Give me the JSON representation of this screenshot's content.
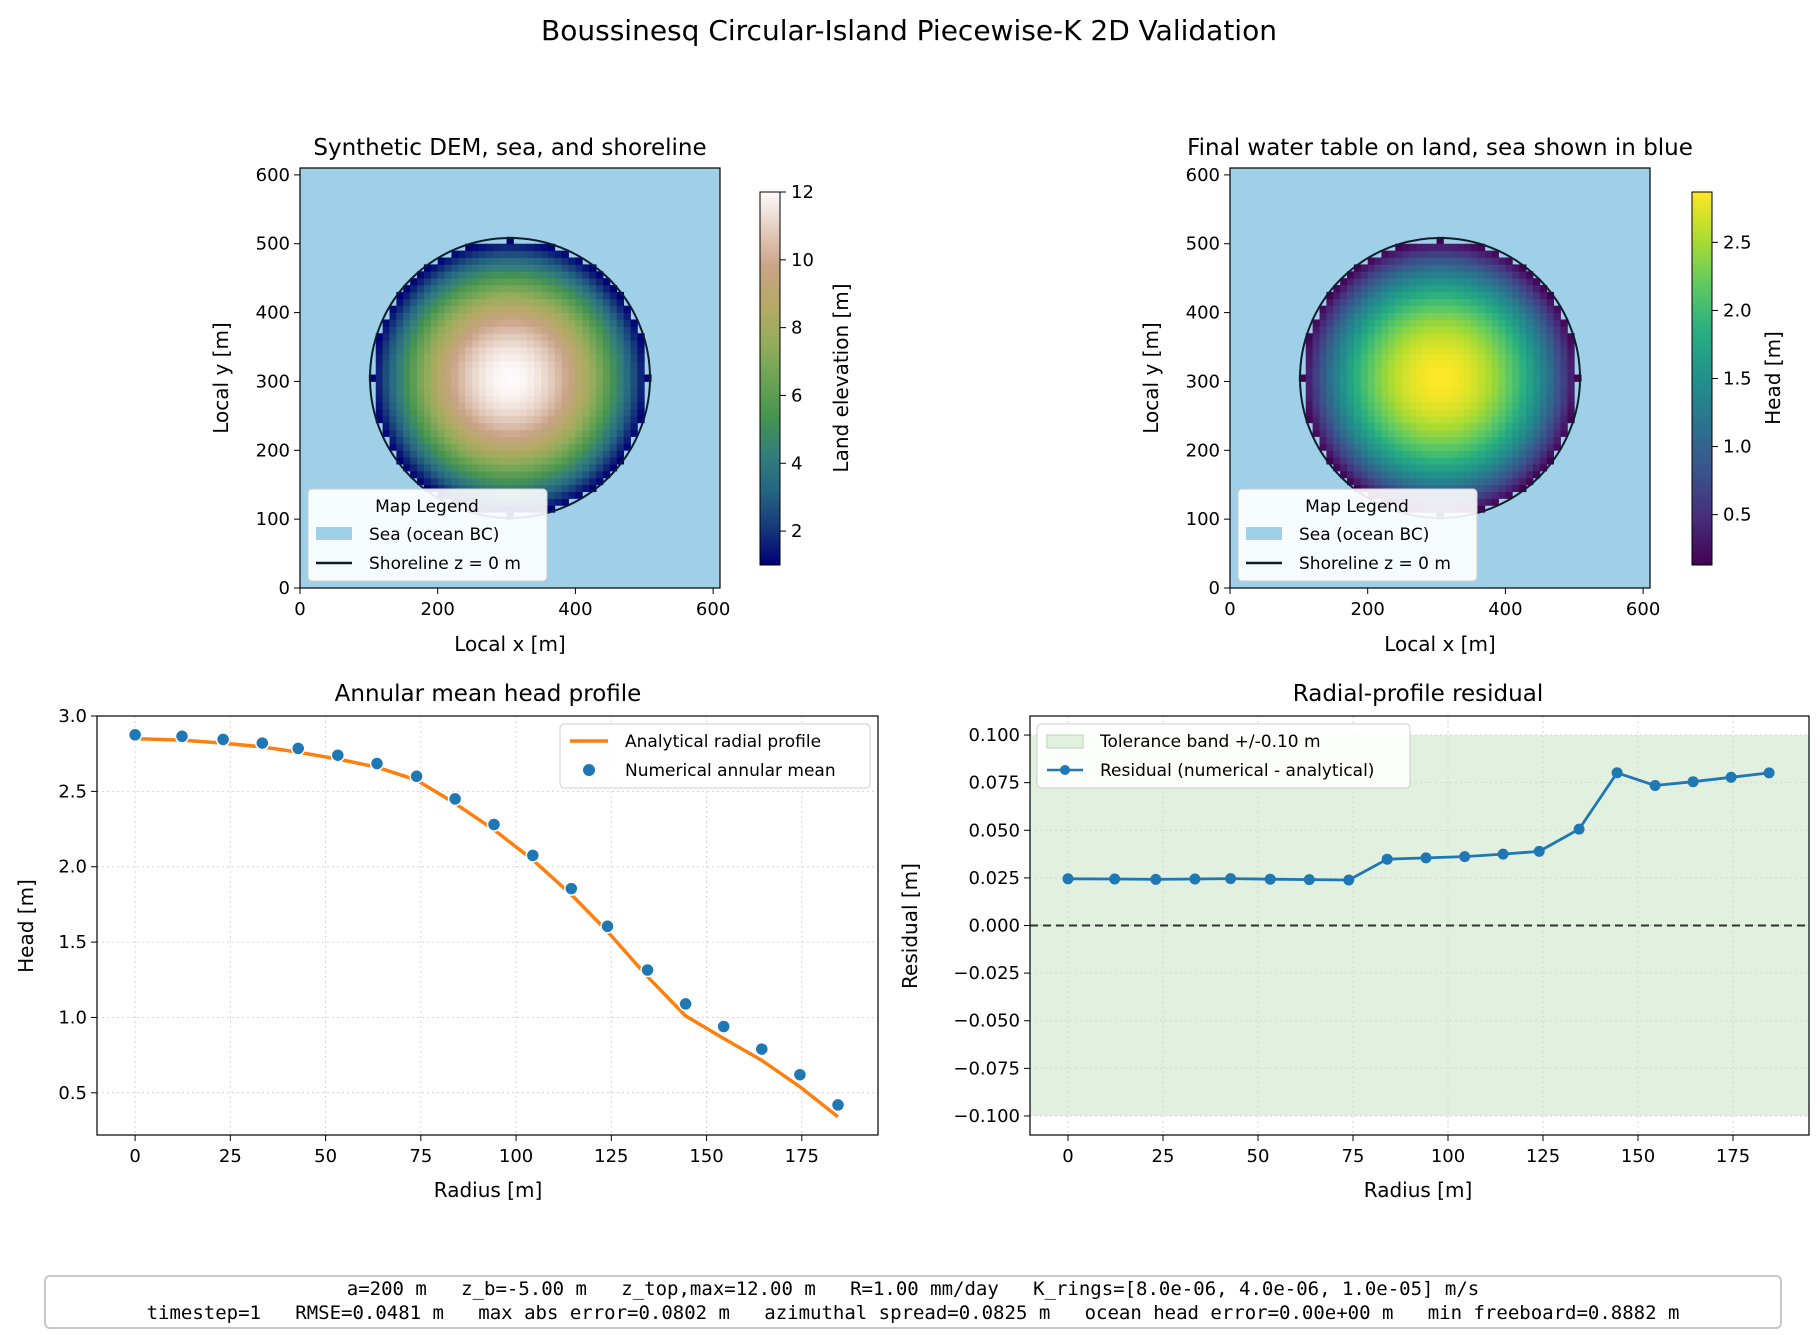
{
  "figure_title": "Boussinesq Circular-Island Piecewise-K 2D Validation",
  "footer": {
    "line1": "a=200 m   z_b=-5.00 m   z_top,max=12.00 m   R=1.00 mm/day   K_rings=[8.0e-06, 4.0e-06, 1.0e-05] m/s",
    "line2": "timestep=1   RMSE=0.0481 m   max abs error=0.0802 m   azimuthal spread=0.0825 m   ocean head error=0.00e+00 m   min freeboard=0.8882 m"
  },
  "colors": {
    "sea": "#a0cfe8",
    "shoreline": "#0b1f2e",
    "analytical": "#ff7f0e",
    "numerical": "#1f77b4",
    "tolerance": "#e2f0e0",
    "zero_line": "#333333"
  },
  "chart_data": [
    {
      "type": "heatmap",
      "title": "Synthetic DEM, sea, and shoreline",
      "xlabel": "Local x [m]",
      "ylabel": "Local y [m]",
      "xlim": [
        0,
        610
      ],
      "ylim": [
        0,
        610
      ],
      "xticks": [
        0,
        200,
        400,
        600
      ],
      "yticks": [
        0,
        100,
        200,
        300,
        400,
        500,
        600
      ],
      "island_center": [
        305,
        305
      ],
      "island_radius": 200,
      "colormap": "gist_earth",
      "colorbar": {
        "label": "Land elevation [m]",
        "range": [
          1,
          12
        ],
        "ticks": [
          2,
          4,
          6,
          8,
          10,
          12
        ]
      },
      "legend": {
        "title": "Map Legend",
        "items": [
          "Sea (ocean BC)",
          "Shoreline z = 0 m"
        ]
      }
    },
    {
      "type": "heatmap",
      "title": "Final water table on land, sea shown in blue",
      "xlabel": "Local x [m]",
      "ylabel": "Local y [m]",
      "xlim": [
        0,
        610
      ],
      "ylim": [
        0,
        610
      ],
      "xticks": [
        0,
        200,
        400,
        600
      ],
      "yticks": [
        0,
        100,
        200,
        300,
        400,
        500,
        600
      ],
      "island_center": [
        305,
        305
      ],
      "island_radius": 200,
      "colormap": "viridis",
      "colorbar": {
        "label": "Head [m]",
        "range": [
          0.13,
          2.87
        ],
        "ticks": [
          0.5,
          1.0,
          1.5,
          2.0,
          2.5
        ],
        "tick_labels": [
          "0.5",
          "1.0",
          "1.5",
          "2.0",
          "2.5"
        ]
      },
      "legend": {
        "title": "Map Legend",
        "items": [
          "Sea (ocean BC)",
          "Shoreline z = 0 m"
        ]
      }
    },
    {
      "type": "line",
      "title": "Annular mean head profile",
      "xlabel": "Radius [m]",
      "ylabel": "Head [m]",
      "xlim": [
        -10,
        195
      ],
      "ylim": [
        0.22,
        3.0
      ],
      "xticks": [
        0,
        25,
        50,
        75,
        100,
        125,
        150,
        175
      ],
      "yticks": [
        0.5,
        1.0,
        1.5,
        2.0,
        2.5,
        3.0
      ],
      "ytick_labels": [
        "0.5",
        "1.0",
        "1.5",
        "2.0",
        "2.5",
        "3.0"
      ],
      "grid": true,
      "legend_position": "top-right",
      "series": [
        {
          "name": "Analytical radial profile",
          "kind": "line",
          "x": [
            0,
            12.3,
            23.1,
            33.4,
            42.8,
            53.2,
            63.5,
            73.9,
            84.0,
            94.2,
            104.4,
            114.5,
            124.0,
            134.5,
            144.5,
            154.5,
            164.5,
            174.5,
            184.5
          ],
          "y": [
            2.85,
            2.84,
            2.82,
            2.795,
            2.76,
            2.715,
            2.66,
            2.575,
            2.42,
            2.245,
            2.045,
            1.815,
            1.57,
            1.27,
            1.01,
            0.86,
            0.715,
            0.54,
            0.34
          ]
        },
        {
          "name": "Numerical annular mean",
          "kind": "scatter",
          "x": [
            0,
            12.3,
            23.1,
            33.4,
            42.8,
            53.2,
            63.5,
            73.9,
            84.0,
            94.2,
            104.4,
            114.5,
            124.0,
            134.5,
            144.5,
            154.5,
            164.5,
            174.5,
            184.5
          ],
          "y": [
            2.875,
            2.865,
            2.845,
            2.82,
            2.785,
            2.74,
            2.685,
            2.6,
            2.45,
            2.28,
            2.075,
            1.855,
            1.605,
            1.315,
            1.09,
            0.94,
            0.79,
            0.62,
            0.42
          ]
        }
      ]
    },
    {
      "type": "line",
      "title": "Radial-profile residual",
      "xlabel": "Radius [m]",
      "ylabel": "Residual [m]",
      "xlim": [
        -10,
        195
      ],
      "ylim": [
        -0.11,
        0.11
      ],
      "xticks": [
        0,
        25,
        50,
        75,
        100,
        125,
        150,
        175
      ],
      "yticks": [
        -0.1,
        -0.075,
        -0.05,
        -0.025,
        0,
        0.025,
        0.05,
        0.075,
        0.1
      ],
      "ytick_labels": [
        "−0.100",
        "−0.075",
        "−0.050",
        "−0.025",
        "0.000",
        "0.025",
        "0.050",
        "0.075",
        "0.100"
      ],
      "grid": true,
      "legend_position": "top-left",
      "tolerance_band": {
        "name": "Tolerance band +/-0.10 m",
        "range": [
          -0.1,
          0.1
        ]
      },
      "series": [
        {
          "name": "Residual (numerical - analytical)",
          "kind": "line-marker",
          "x": [
            0,
            12.3,
            23.1,
            33.4,
            42.8,
            53.2,
            63.5,
            73.9,
            84.0,
            94.2,
            104.4,
            114.5,
            124.0,
            134.5,
            144.5,
            154.5,
            164.5,
            174.5,
            184.5
          ],
          "y": [
            0.0245,
            0.0244,
            0.0242,
            0.0244,
            0.0246,
            0.0243,
            0.0241,
            0.0239,
            0.0348,
            0.0355,
            0.0362,
            0.0375,
            0.0389,
            0.0506,
            0.0802,
            0.0735,
            0.0755,
            0.0778,
            0.0801
          ]
        }
      ]
    }
  ]
}
